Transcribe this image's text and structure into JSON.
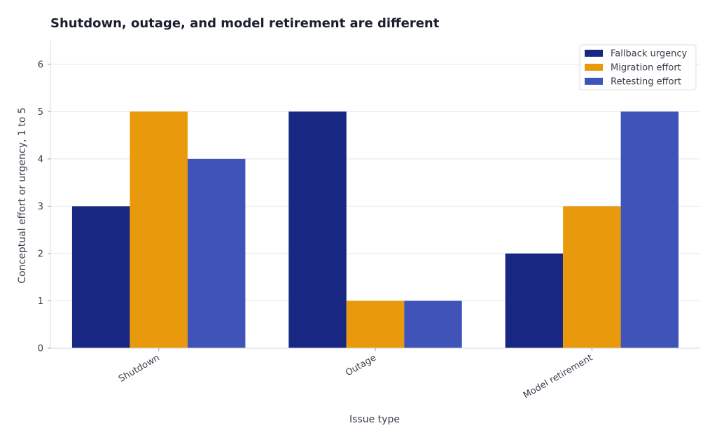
{
  "chart_data": {
    "type": "bar",
    "title": "Shutdown, outage, and model retirement are different",
    "xlabel": "Issue type",
    "ylabel": "Conceptual effort or urgency, 1 to 5",
    "categories": [
      "Shutdown",
      "Outage",
      "Model retirement"
    ],
    "series": [
      {
        "name": "Fallback urgency",
        "color": "#182882",
        "values": [
          3,
          5,
          2
        ]
      },
      {
        "name": "Migration effort",
        "color": "#e99a0c",
        "values": [
          5,
          1,
          3
        ]
      },
      {
        "name": "Retesting effort",
        "color": "#3f53b9",
        "values": [
          4,
          1,
          5
        ]
      }
    ],
    "ylim": [
      0,
      6.5
    ],
    "yticks": [
      0,
      1,
      2,
      3,
      4,
      5,
      6
    ],
    "grid": true,
    "legend_position": "top-right",
    "xtick_rotation": "rotated 30 degrees"
  }
}
